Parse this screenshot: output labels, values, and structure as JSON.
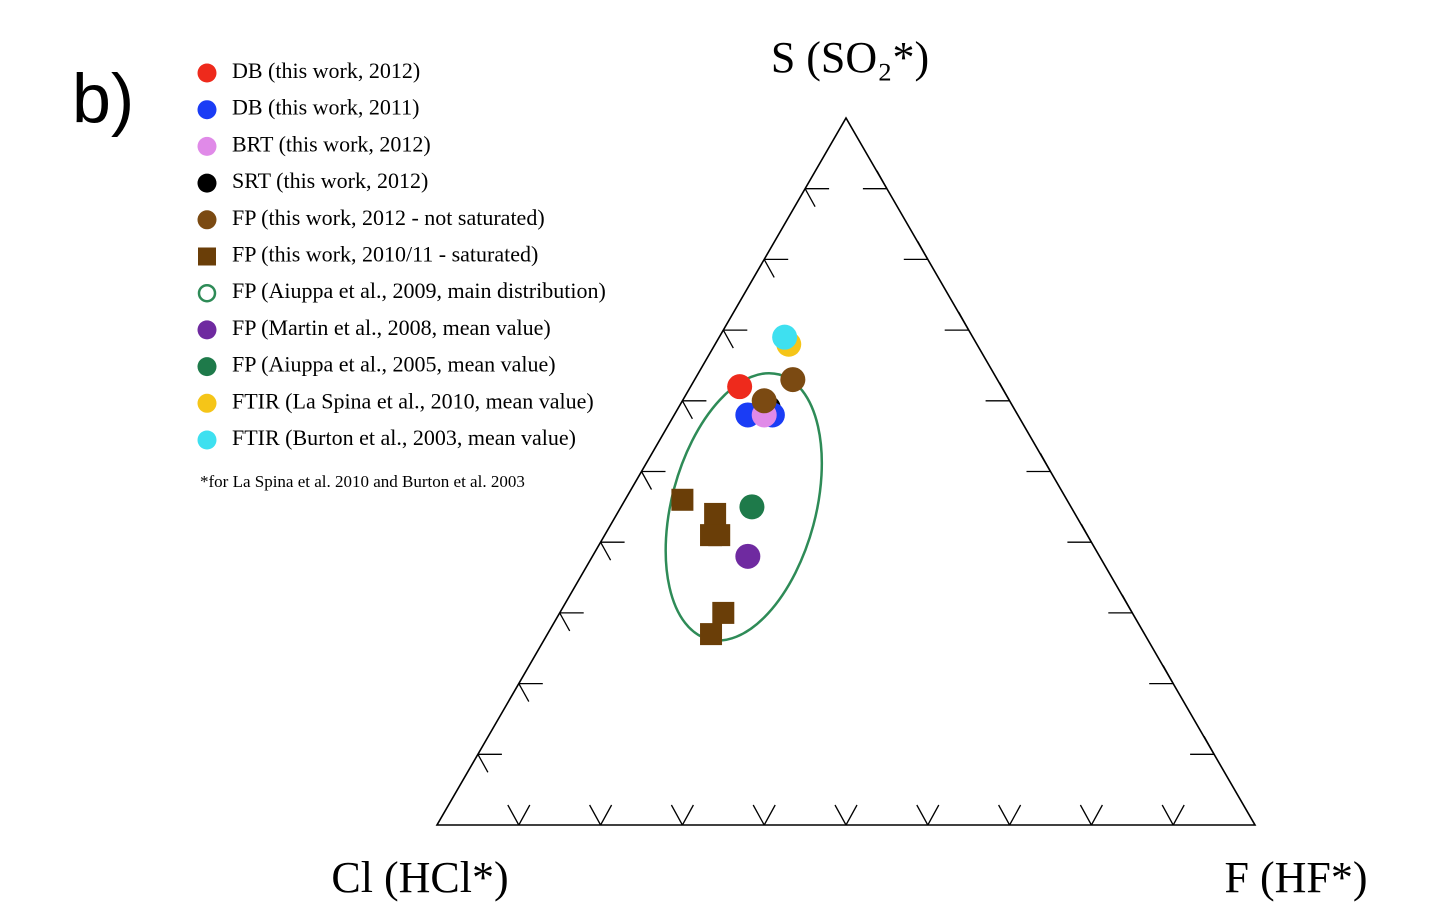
{
  "chart_data": {
    "type": "ternary",
    "panel_label": "b)",
    "top_label": "S (SO₂*)",
    "left_label": "Cl (HCl*)",
    "right_label": "F (HF*)",
    "note": "*for La Spina et al. 2010 and Burton et al. 2003",
    "ticks": [
      10,
      20,
      30,
      40,
      50,
      60,
      70,
      80,
      90
    ],
    "series": [
      {
        "name": "DB (this work, 2012)",
        "color": "#ee2a1c",
        "marker": "circle",
        "values": [
          {
            "S": 62,
            "Cl": 32,
            "F": 6
          }
        ]
      },
      {
        "name": "DB (this work, 2011)",
        "color": "#1a3cf5",
        "marker": "circle",
        "values": [
          {
            "S": 58,
            "Cl": 33,
            "F": 9
          },
          {
            "S": 58,
            "Cl": 30,
            "F": 12
          }
        ]
      },
      {
        "name": "BRT (this work, 2012)",
        "color": "#e08ae8",
        "marker": "circle",
        "values": [
          {
            "S": 58,
            "Cl": 31,
            "F": 11
          }
        ]
      },
      {
        "name": "SRT (this work, 2012)",
        "color": "#000000",
        "marker": "circle",
        "values": [
          {
            "S": 59,
            "Cl": 30,
            "F": 11
          }
        ]
      },
      {
        "name": "FP (this work, 2012 - not saturated)",
        "color": "#7b4a12",
        "marker": "circle",
        "values": [
          {
            "S": 63,
            "Cl": 25,
            "F": 12
          },
          {
            "S": 60,
            "Cl": 30,
            "F": 10
          }
        ]
      },
      {
        "name": "FP (this work, 2010/11 - saturated)",
        "color": "#6a3e08",
        "marker": "square",
        "values": [
          {
            "S": 46,
            "Cl": 47,
            "F": 7
          },
          {
            "S": 44,
            "Cl": 44,
            "F": 12
          },
          {
            "S": 41,
            "Cl": 46,
            "F": 13
          },
          {
            "S": 41,
            "Cl": 45,
            "F": 14
          },
          {
            "S": 30,
            "Cl": 50,
            "F": 20
          },
          {
            "S": 27,
            "Cl": 53,
            "F": 20
          }
        ]
      },
      {
        "name": "FP (Aiuppa et al., 2009, main distribution)",
        "color": "#2e8b57",
        "marker": "ellipse",
        "values": [
          {
            "S": 45,
            "Cl": 40,
            "F": 15
          }
        ]
      },
      {
        "name": "FP (Martin et al., 2008, mean value)",
        "color": "#6f2aa0",
        "marker": "circle",
        "values": [
          {
            "S": 38,
            "Cl": 43,
            "F": 19
          }
        ]
      },
      {
        "name": "FP (Aiuppa et al., 2005, mean value)",
        "color": "#1e7a4a",
        "marker": "circle",
        "values": [
          {
            "S": 45,
            "Cl": 39,
            "F": 16
          }
        ]
      },
      {
        "name": "FTIR (La Spina et al., 2010, mean value)",
        "color": "#f5c518",
        "marker": "circle",
        "values": [
          {
            "S": 68,
            "Cl": 23,
            "F": 9
          }
        ]
      },
      {
        "name": "FTIR (Burton et al., 2003, mean value)",
        "color": "#3ee0f0",
        "marker": "circle",
        "values": [
          {
            "S": 69,
            "Cl": 23,
            "F": 8
          }
        ]
      }
    ]
  }
}
